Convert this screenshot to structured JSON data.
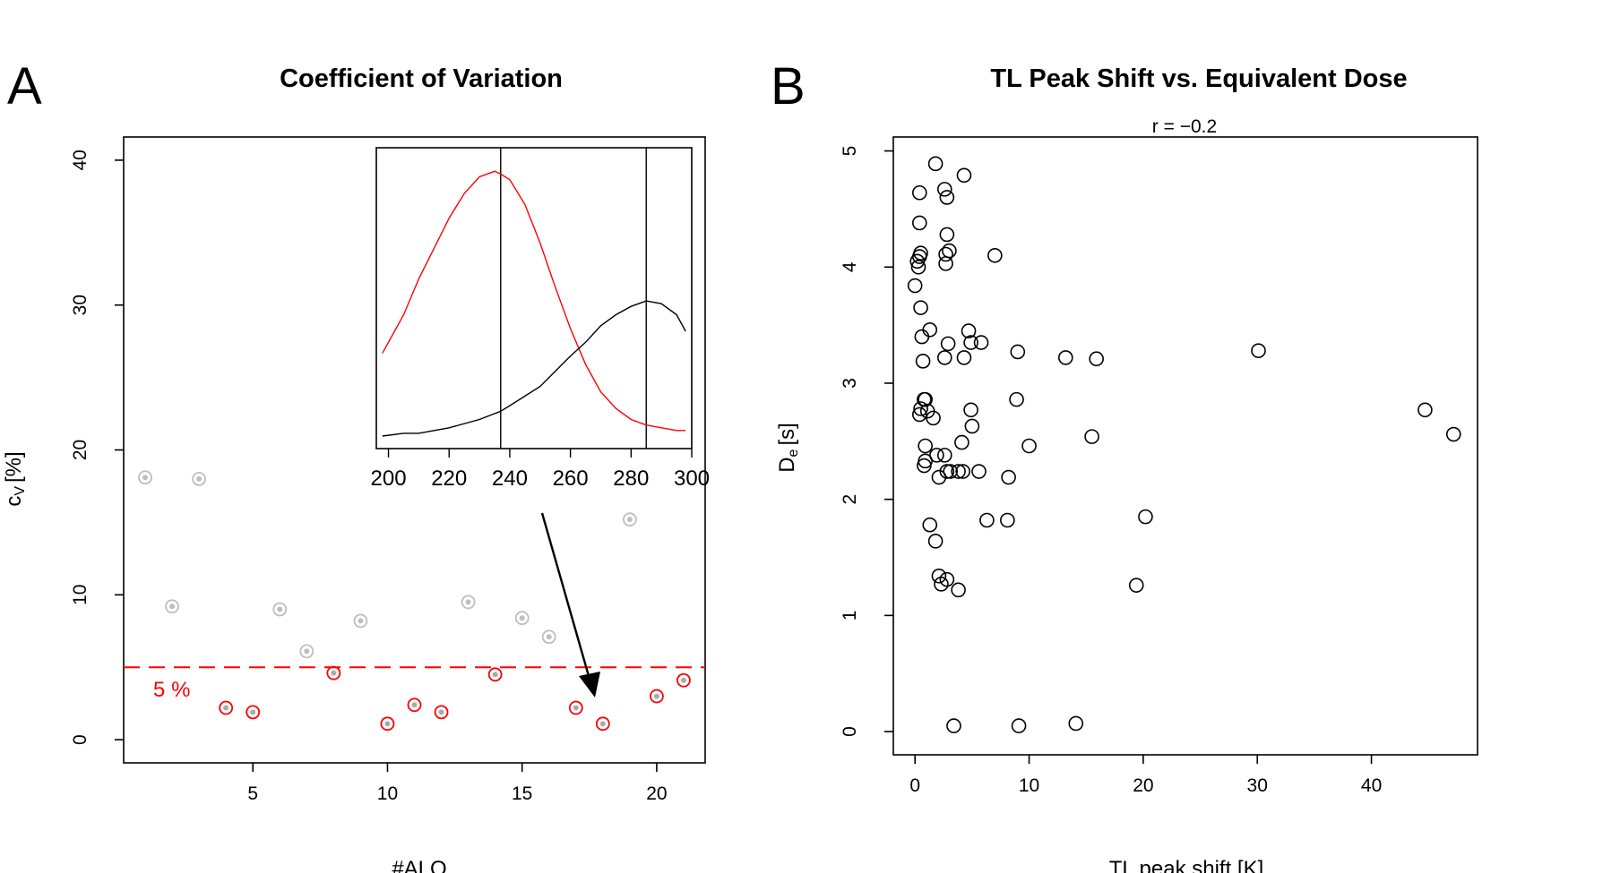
{
  "figure": {
    "panels": [
      {
        "letter": "A"
      },
      {
        "letter": "B"
      }
    ]
  },
  "chart_data": [
    {
      "type": "scatter",
      "panel": "A",
      "title": "Coefficient of Variation",
      "xlabel": "#ALQ",
      "ylabel": "c",
      "ylabel_sub": "V",
      "ylabel_unit": "[%]",
      "xlim": [
        0.2,
        21.8
      ],
      "ylim": [
        -1.6,
        41.6
      ],
      "xticks": [
        5,
        10,
        15,
        20
      ],
      "yticks": [
        0,
        10,
        20,
        30,
        40
      ],
      "threshold": {
        "value": 5,
        "label": "5 %",
        "color": "#ff0000"
      },
      "colors": {
        "above": "#bebebe",
        "below": "#ff0000"
      },
      "series": [
        {
          "x": [
            1,
            2,
            3,
            4,
            5,
            6,
            7,
            8,
            9,
            10,
            11,
            12,
            13,
            14,
            15,
            16,
            17,
            18,
            19,
            20,
            21
          ],
          "values": [
            18.1,
            9.2,
            18.0,
            2.2,
            1.9,
            9.0,
            6.1,
            4.6,
            8.2,
            1.1,
            2.4,
            1.9,
            9.5,
            4.5,
            8.4,
            7.1,
            2.2,
            1.1,
            15.2,
            3.0,
            4.1
          ]
        }
      ],
      "inset": {
        "type": "line",
        "xlim": [
          196,
          300
        ],
        "ylim": [
          0,
          1
        ],
        "xticks": [
          200,
          220,
          240,
          260,
          280,
          300
        ],
        "vlines": [
          237,
          285
        ],
        "series": [
          {
            "color": "#ff0000",
            "x": [
              198,
              200,
              205,
              210,
              215,
              220,
              225,
              230,
              235,
              237,
              240,
              245,
              250,
              255,
              260,
              265,
              270,
              275,
              280,
              285,
              290,
              295,
              298
            ],
            "values": [
              0.3,
              0.34,
              0.44,
              0.57,
              0.68,
              0.79,
              0.88,
              0.94,
              0.96,
              0.95,
              0.93,
              0.84,
              0.7,
              0.54,
              0.39,
              0.26,
              0.16,
              0.1,
              0.06,
              0.04,
              0.03,
              0.02,
              0.02
            ]
          },
          {
            "color": "#000000",
            "x": [
              198,
              205,
              210,
              220,
              230,
              237,
              240,
              250,
              260,
              265,
              270,
              275,
              280,
              285,
              290,
              295,
              298
            ],
            "values": [
              0.0,
              0.01,
              0.01,
              0.03,
              0.06,
              0.09,
              0.11,
              0.18,
              0.29,
              0.34,
              0.4,
              0.44,
              0.47,
              0.49,
              0.48,
              0.44,
              0.38
            ]
          }
        ]
      }
    },
    {
      "type": "scatter",
      "panel": "B",
      "title": "TL Peak Shift vs. Equivalent Dose",
      "subtitle": "r =  −0.2",
      "xlabel": "TL peak shift [K]",
      "ylabel": "D",
      "ylabel_sub": "e",
      "ylabel_unit": "[s]",
      "xlim": [
        -1.9,
        49.3
      ],
      "ylim": [
        -0.2,
        5.12
      ],
      "xticks": [
        0,
        10,
        20,
        30,
        40
      ],
      "yticks": [
        0,
        1,
        2,
        3,
        4,
        5
      ],
      "series": [
        {
          "x": [
            0.0,
            0.2,
            0.3,
            0.4,
            0.5,
            0.4,
            0.4,
            0.5,
            0.6,
            0.7,
            1.3,
            1.8,
            2.6,
            2.8,
            2.7,
            3.0,
            2.7,
            2.8,
            4.3,
            4.3,
            2.6,
            2.9,
            7.0,
            1.6,
            0.9,
            0.5,
            0.4,
            1.1,
            0.9,
            0.8,
            1.9,
            2.6,
            4.1,
            3.1,
            5.0,
            4.9,
            5.8,
            9.0,
            4.7,
            4.9,
            3.8,
            2.8,
            2.1,
            0.8,
            0.9,
            4.2,
            5.6,
            8.2,
            8.9,
            10.0,
            13.2,
            15.9,
            30.1,
            44.7,
            47.2,
            15.5,
            1.3,
            1.8,
            6.3,
            8.1,
            20.2,
            2.1,
            2.8,
            2.3,
            3.8,
            19.4,
            3.4,
            9.1,
            14.1
          ],
          "values": [
            3.84,
            4.05,
            4.0,
            4.09,
            4.12,
            4.64,
            4.38,
            3.65,
            3.4,
            3.19,
            3.46,
            4.89,
            4.67,
            4.6,
            4.11,
            4.14,
            4.03,
            4.28,
            4.79,
            3.22,
            3.22,
            3.34,
            4.1,
            2.7,
            2.86,
            2.78,
            2.73,
            2.76,
            2.33,
            2.29,
            2.38,
            2.38,
            2.49,
            2.24,
            2.63,
            2.77,
            3.35,
            3.27,
            3.45,
            3.35,
            2.24,
            2.24,
            2.19,
            2.86,
            2.46,
            2.24,
            2.24,
            2.19,
            2.86,
            2.46,
            3.22,
            3.21,
            3.28,
            2.77,
            2.56,
            2.54,
            1.78,
            1.64,
            1.82,
            1.82,
            1.85,
            1.34,
            1.31,
            1.27,
            1.22,
            1.26,
            0.05,
            0.05,
            0.07
          ]
        }
      ]
    }
  ]
}
